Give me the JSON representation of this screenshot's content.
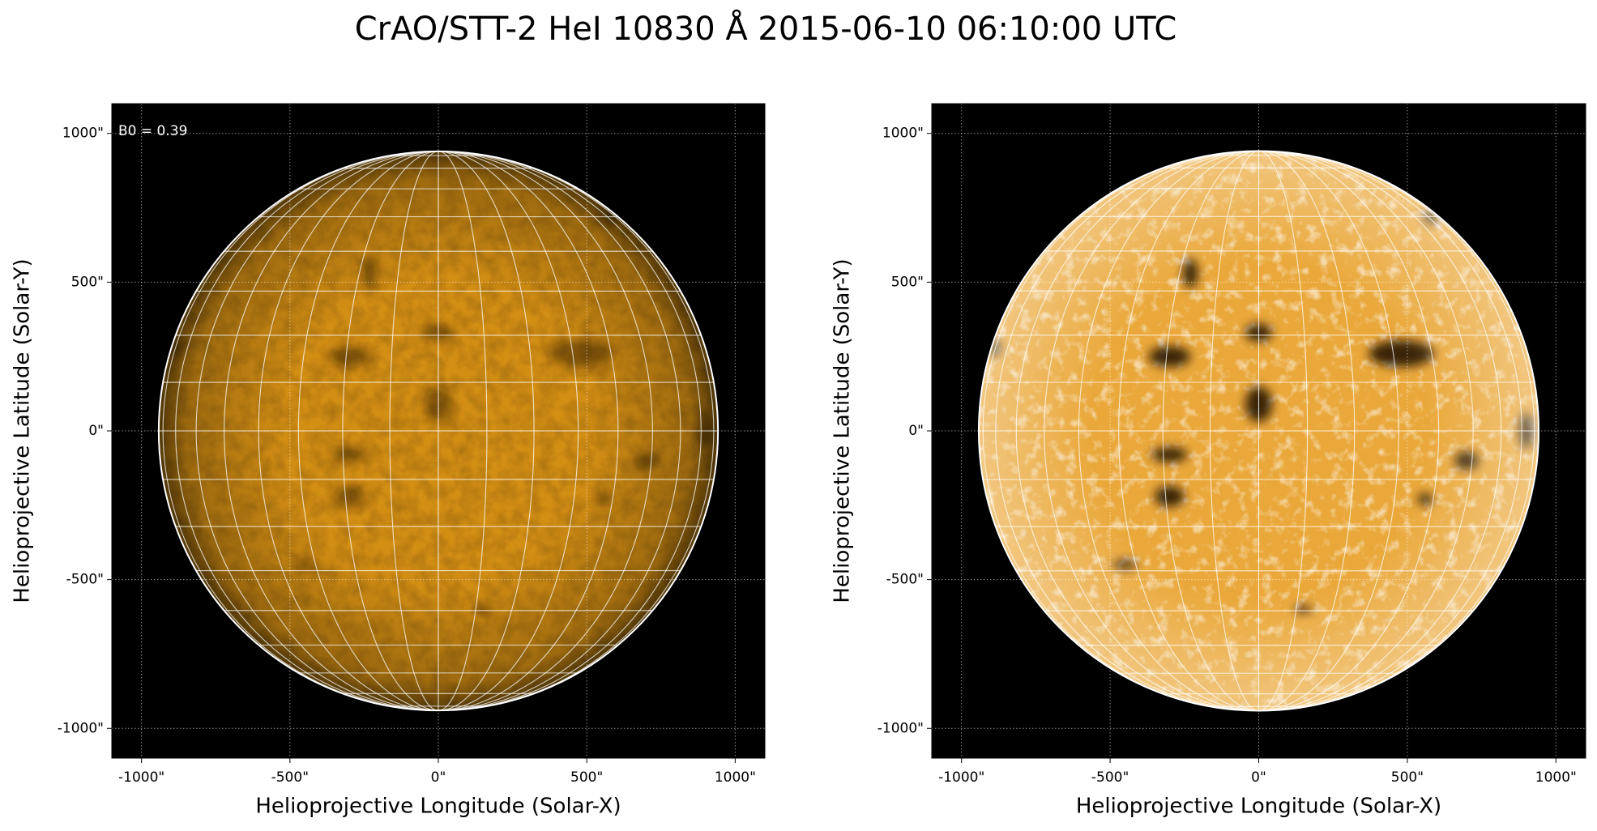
{
  "title": "CrAO/STT-2 HeI 10830 Å 2015-06-10 06:10:00 UTC",
  "chart_data": [
    {
      "type": "solar-disk",
      "annotation": "B0 = 0.39",
      "xlabel": "Helioprojective Longitude (Solar-X)",
      "ylabel": "Helioprojective Latitude (Solar-Y)",
      "xlim": [
        -1100,
        1100
      ],
      "ylim": [
        -1100,
        1100
      ],
      "xticks": [
        {
          "value": -1000,
          "label": "-1000\""
        },
        {
          "value": -500,
          "label": "-500\""
        },
        {
          "value": 0,
          "label": "0\""
        },
        {
          "value": 500,
          "label": "500\""
        },
        {
          "value": 1000,
          "label": "1000\""
        }
      ],
      "yticks": [
        {
          "value": -1000,
          "label": "-1000\""
        },
        {
          "value": -500,
          "label": "-500\""
        },
        {
          "value": 0,
          "label": "0\""
        },
        {
          "value": 500,
          "label": "500\""
        },
        {
          "value": 1000,
          "label": "1000\""
        }
      ],
      "grid": true,
      "solar_radius": 942,
      "heliographic_grid_deg": 10,
      "color": "#d38e14"
    },
    {
      "type": "solar-disk",
      "xlabel": "Helioprojective Longitude (Solar-X)",
      "ylabel": "Helioprojective Latitude (Solar-Y)",
      "xlim": [
        -1100,
        1100
      ],
      "ylim": [
        -1100,
        1100
      ],
      "xticks": [
        {
          "value": -1000,
          "label": "-1000\""
        },
        {
          "value": -500,
          "label": "-500\""
        },
        {
          "value": 0,
          "label": "0\""
        },
        {
          "value": 500,
          "label": "500\""
        },
        {
          "value": 1000,
          "label": "1000\""
        }
      ],
      "yticks": [
        {
          "value": -1000,
          "label": "-1000\""
        },
        {
          "value": -500,
          "label": "-500\""
        },
        {
          "value": 0,
          "label": "0\""
        },
        {
          "value": 500,
          "label": "500\""
        },
        {
          "value": 1000,
          "label": "1000\""
        }
      ],
      "grid": true,
      "solar_radius": 942,
      "heliographic_grid_deg": 10,
      "color": "#eaa83a"
    }
  ]
}
